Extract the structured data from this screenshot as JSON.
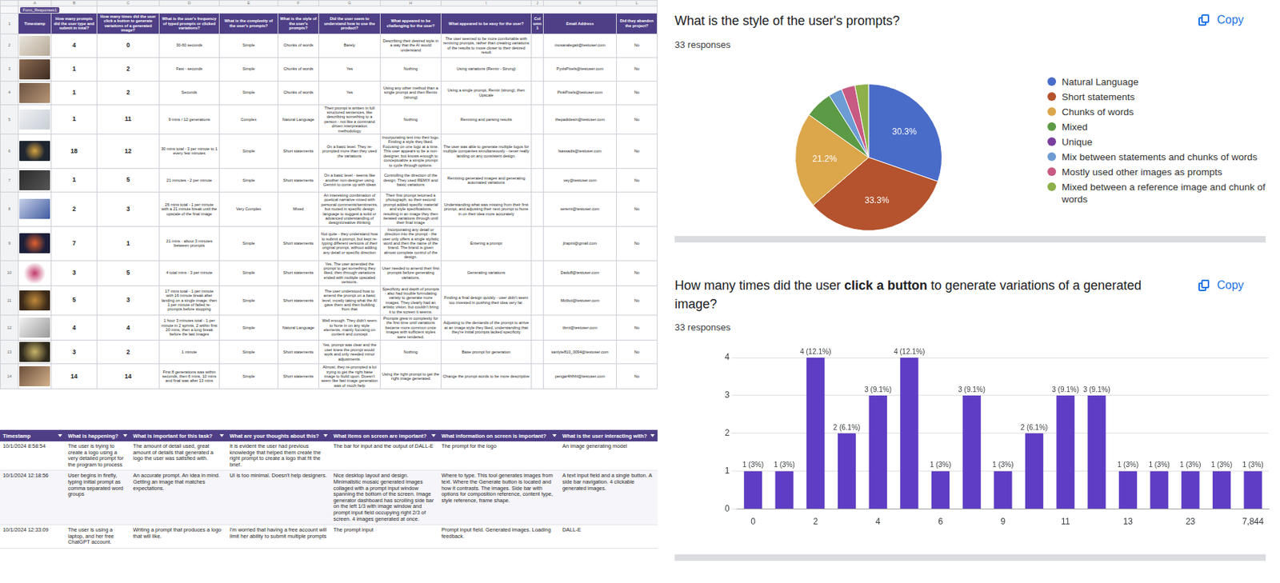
{
  "spreadsheet": {
    "tab": "Form_Responses1",
    "column_letters": [
      "A",
      "B",
      "C",
      "D",
      "E",
      "F",
      "G",
      "H",
      "I",
      "J",
      "K",
      "L"
    ],
    "header_row": 1,
    "headers": [
      "Timestamp",
      "How many prompts did the user type and submit in total?",
      "How many times did the user click a button to generate variations of a generated image?",
      "What is the user's frequency of typed prompts or clicked variations?",
      "What is the complexity of the user's prompts?",
      "What is the style of the user's prompts?",
      "Did the user seem to understand how to use the product?",
      "What appeared to be challenging for the user?",
      "What appeared to be easy for the user?",
      "Column 1",
      "Email Address",
      "Did they abandon the project?"
    ],
    "rows": [
      {
        "row": 2,
        "cells": [
          4,
          0,
          "30-60 seconds",
          "Simple",
          "Chunks of words",
          "Barely",
          "Describing their desired style in a way that the AI would understand",
          "The user seemed to be more comfortable with remixing prompts, rather than creating variations of the results to move closer to their desired result",
          null,
          "mosanalegati@testuser.com",
          "No"
        ]
      },
      {
        "row": 3,
        "cells": [
          1,
          2,
          "Fast - seconds",
          "Simple",
          "Chunks of words",
          "Yes",
          "Nothing",
          "Using variations (Remix - Strong)",
          null,
          "PyxlsPixels@testuser.com",
          "No"
        ]
      },
      {
        "row": 4,
        "cells": [
          1,
          2,
          "Seconds",
          "Simple",
          "Chunks of words",
          "Yes",
          "Using any other method than a single prompt and then Remix (strong)",
          "Using a single prompt, Remix (strong), then Upscale",
          null,
          "PinkPixels@testuser.com",
          "No"
        ]
      },
      {
        "row": 5,
        "cells": [
          1,
          11,
          "9 mins / 12 generations",
          "Complex",
          "Natural Language",
          "Their prompt is written in full structured sentences, like describing something to a person - not like a command driven interpretation methodology",
          "Nothing",
          "Remixing and parsing results",
          null,
          "thepadidesin@testuser.com",
          "No"
        ]
      },
      {
        "row": 6,
        "cells": [
          18,
          12,
          "30 mins total - 3 per minute to 1 every few minutes",
          "Simple",
          "Short statements",
          "On a basic level. They re-prompted more than they used the variations",
          "Incorporating text into their logo. Finding a style they liked. Focusing on one logo at a time. This user appears to be a non-designer, but knows enough to conceptualize a simple prompt to cycle through options.",
          "The user was able to generate multiple logos for multiple companies simultaneously - never really landing on any consistent design.",
          null,
          "lsassadis@testuser.com",
          "No"
        ]
      },
      {
        "row": 7,
        "cells": [
          1,
          5,
          "21 minutes - 2 per minute",
          "Simple",
          "Short statements",
          "On a basic level - seems like another non-designer using Gemini to come up with ideas",
          "Controlling the direction of the design. They used REMIX and basic variations",
          "Remixing generated images and generating automated variations",
          null,
          "vey@testuser.com",
          "No"
        ]
      },
      {
        "row": 8,
        "cells": [
          2,
          3,
          "26 mins total - 1 per minute with a 21 minute break until the upscale of the final image",
          "Very Complex",
          "Mixed",
          "An interesting combination of poetical narrative mixed with personal comments/sentiments, but rooted in specific design language to suggest a solid or advanced understanding of design/creative thinking",
          "Their first prompt returned a photograph, so their second prompt added specific material and style specifications, resulting in an image they then iterated variations through until their final image",
          "Understanding what was missing from their first prompt, and adjusting their next prompt to hone in on their idea more accurately",
          null,
          "sererni@testuser.com",
          "No"
        ]
      },
      {
        "row": 9,
        "cells": [
          7,
          1,
          "21 mins - about 3 minutes between prompts",
          "Simple",
          "Short statements",
          "Not quite - they understand how to submit a prompt, but kept re-typing different versions of their original prompt, without adding any detail or specific direction",
          "Incorporating any detail or direction into the prompt - the user only offers a single stylistic word and then the name of the brand. The brand is given almost complete control of the design.",
          "Entering a prompt",
          null,
          "jlrapini@gmail.com",
          "No"
        ]
      },
      {
        "row": 10,
        "cells": [
          3,
          5,
          "4 total mins - 3 per minute",
          "Simple",
          "Short statements",
          "Yes. The user amended the prompt to get something they liked, then through variations ended with multiple upscaled versions.",
          "User needed to amend their first prompts before generating variations.",
          "Generating variations",
          null,
          "Dadu8@testuser.com",
          "No"
        ]
      },
      {
        "row": 11,
        "cells": [
          5,
          3,
          "17 mins total - 1 per minute with 16 minute break after landing on a single image; then 1 per minute of failed re-prompts before stopping",
          "Simple",
          "Short statements",
          "The user understood how to amend the prompt on a basic level, mostly taking what the AI gave them and then building from that",
          "Specificity and depth of prompts - also had trouble formulating variety to generate more images. They clearly had an artistic vision, but couldn't bring it to the screen it seems.",
          "Finding a final design quickly - user didn't seem too invested in pushing their idea very far.",
          null,
          "Mctbot@testuser.com",
          "No"
        ]
      },
      {
        "row": 12,
        "cells": [
          4,
          4,
          "1 hour 3 minutes total - 1 per minute in 2 sprints, 2 within first 20 mins, then a long break before the last images",
          "Simple",
          "Natural Language",
          "Well enough. They didn't seem to hone in on any style elements, mainly focusing on content and concept",
          "Prompts grew in complexity for the first time until variations became more common once images with sufficient styles were rendered.",
          "Adjusting to the demands of the prompt to arrive at an image style they liked, understanding that they're initial prompts lacked specificity",
          null,
          "tbmt@testuser.com",
          "No"
        ]
      },
      {
        "row": 13,
        "cells": [
          3,
          2,
          "1 minute",
          "Simple",
          "Short statements",
          "Yes, prompt was clear and the user knew the prompt would work and only needed minor adjustments.",
          "Nothing",
          "Base prompt for generation",
          null,
          "sanlyte810_0094@testuser.com",
          "No"
        ]
      },
      {
        "row": 14,
        "cells": [
          14,
          14,
          "First 8 generations was within seconds, then 6 mins, 10 mins and final was after 13 mins",
          "Simple",
          "Short statements",
          "Almost; they re-prompted a lot trying to get the right base image to build upon. Doesn't seem like fast image generation was of much help",
          "Using the right prompt to get the right image generated",
          "Change the prompt words to be more descriptive",
          null,
          "pengar4hlhhl@testuser.com",
          "No"
        ]
      }
    ]
  },
  "observations": {
    "headers": [
      "Timestamp",
      "What is happening?",
      "What is important for this task?",
      "What are your thoughts about this?",
      "What items on screen are important?",
      "What information on screen is important?",
      "What is the user interacting with?"
    ],
    "rows": [
      [
        "10/1/2024 8:58:54",
        "The user is trying to create a logo using a very detailed prompt for the program to process",
        "The amount of detail used, great amount of details that generated a logo the user was satisfied with.",
        "It is evident the user had previous knowledge that helped them create the right prompt to create a logo that fit the brief.",
        "The bar for input and the output of DALL-E",
        "The prompt for the logo",
        "An image generating model"
      ],
      [
        "10/1/2024 12:18:56",
        "User begins in firefly, typing initial prompt as comma separated word groups",
        "An accurate prompt. An idea in mind. Getting an image that matches expectations.",
        "UI is too minimal. Doesn't help designers.",
        "Nice desktop layout and design. Minimalistic mosaic generated images collaged with a prompt input window spanning the bottom of the screen. Image generator dashboard has scrolling side bar on the left 1/3 with image window and prompt input field occupying right 2/3 of screen. 4 images generated at once.",
        "Where to type. This tool generates images from text. Where the Generate button is located and how it contrasts. The images. Side bar with options for composition reference, content type, style reference, frame shape.",
        "A text input field and a single button. A side bar navigation. 4 clickable generated images."
      ],
      [
        "10/1/2024 12:33:09",
        "The user is using a laptop, and her free ChatGPT account.",
        "Writing a prompt that produces a logo that will like.",
        "I'm worried that having a free account will limit her ability to submit multiple prompts",
        "The prompt input",
        "Prompt input field. Generated images. Loading feedback.",
        "DALL-E"
      ]
    ]
  },
  "copy_button": "Copy",
  "chart_data": [
    {
      "type": "pie",
      "title": "What is the style of the user's prompts?",
      "subtitle": "33 responses",
      "categories": [
        "Natural Language",
        "Short statements",
        "Chunks of words",
        "Mixed",
        "Unique",
        "Mix between statements and chunks of words",
        "Mostly used other images as prompts",
        "Mixed between a reference image and chunk of words"
      ],
      "values": [
        30.3,
        33.3,
        21.2,
        6.1,
        0,
        3,
        3,
        3
      ],
      "value_labels": [
        "30.3%",
        "33.3%",
        "21.2%",
        null,
        null,
        null,
        null,
        null
      ],
      "colors": [
        "#4a6cc9",
        "#b4532d",
        "#dca64b",
        "#5c9a45",
        "#7a3f9c",
        "#6d9bd3",
        "#c75a82",
        "#8db04a"
      ],
      "legend": "right"
    },
    {
      "type": "bar",
      "title": "How many times did the user click a button to generate variations of a generated image?",
      "emphasis": "click a button",
      "subtitle": "33 responses",
      "categories": [
        "0",
        null,
        "2",
        null,
        "4",
        null,
        "6",
        null,
        "9",
        null,
        "11",
        null,
        "13",
        null,
        "23",
        null,
        "7,844"
      ],
      "values": [
        1,
        1,
        4,
        2,
        3,
        4,
        1,
        3,
        1,
        2,
        3,
        3,
        1,
        1,
        1,
        1,
        1
      ],
      "value_labels": [
        "1 (3%)",
        "1 (3%)",
        "4 (12.1%)",
        "2 (6.1%)",
        "3 (9.1%)",
        "4 (12.1%)",
        "1 (3%)",
        "3 (9.1%)",
        "1 (3%)",
        "2 (6.1%)",
        "3 (9.1%)",
        "3 (9.1%)",
        "1 (3%)",
        "1 (3%)",
        "1 (3%)",
        "1 (3%)",
        "1 (3%)"
      ],
      "color": "#5f3dc4",
      "ylim": [
        0,
        4
      ],
      "yticks": [
        0,
        1,
        2,
        3,
        4
      ],
      "grid": true
    }
  ]
}
